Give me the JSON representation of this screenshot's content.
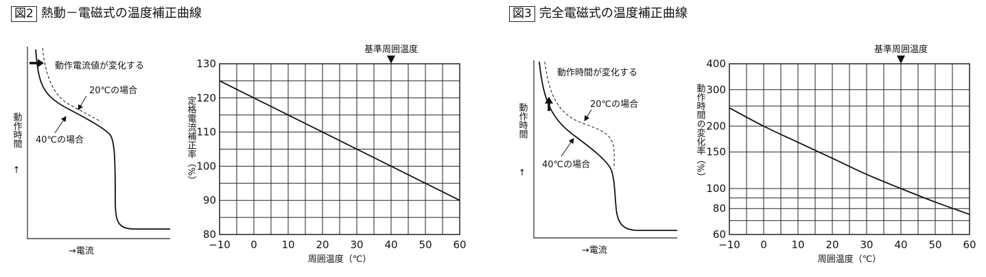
{
  "figures": [
    {
      "number": "図2",
      "title": "熱動－電磁式の温度補正曲線",
      "schematic": {
        "ylabel": "動作時間",
        "ylabel_arrow": "↑",
        "xlabel": "→電流",
        "annotations": [
          "動作電流値が変化する",
          "20℃の場合",
          "40℃の場合"
        ],
        "shift_arrow": "right"
      }
    },
    {
      "number": "図3",
      "title": "完全電磁式の温度補正曲線",
      "schematic": {
        "ylabel": "動作時間",
        "ylabel_arrow": "↑",
        "xlabel": "→電流",
        "annotations": [
          "動作時間が変化する",
          "20℃の場合",
          "40℃の場合"
        ],
        "shift_arrow": "up"
      }
    }
  ],
  "chart_data": [
    {
      "type": "line",
      "xlabel": "周囲温度（℃）",
      "ylabel": "定格電流補正率（%）",
      "x_ticks": [
        -10,
        0,
        10,
        20,
        30,
        40,
        50,
        60
      ],
      "y_ticks": [
        80,
        90,
        100,
        110,
        120,
        130
      ],
      "xlim": [
        -10,
        60
      ],
      "ylim": [
        80,
        130
      ],
      "grid": true,
      "reference": {
        "label": "基準周囲温度",
        "x": 40
      },
      "x": [
        -10,
        60
      ],
      "y": [
        125,
        90
      ]
    },
    {
      "type": "line",
      "xlabel": "周囲温度（℃）",
      "ylabel": "動作時間の変化率（%）",
      "y_scale": "log",
      "x_ticks": [
        -10,
        0,
        10,
        20,
        30,
        40,
        50,
        60
      ],
      "y_ticks": [
        60,
        80,
        100,
        150,
        200,
        300,
        400
      ],
      "y_gridlines": [
        60,
        70,
        80,
        90,
        100,
        150,
        200,
        250,
        300,
        400
      ],
      "xlim": [
        -10,
        60
      ],
      "ylim": [
        60,
        400
      ],
      "grid": true,
      "reference": {
        "label": "基準周囲温度",
        "x": 40
      },
      "x": [
        -10,
        0,
        10,
        20,
        30,
        40,
        50,
        60
      ],
      "y": [
        245,
        200,
        167,
        140,
        117,
        100,
        86,
        75
      ]
    }
  ]
}
